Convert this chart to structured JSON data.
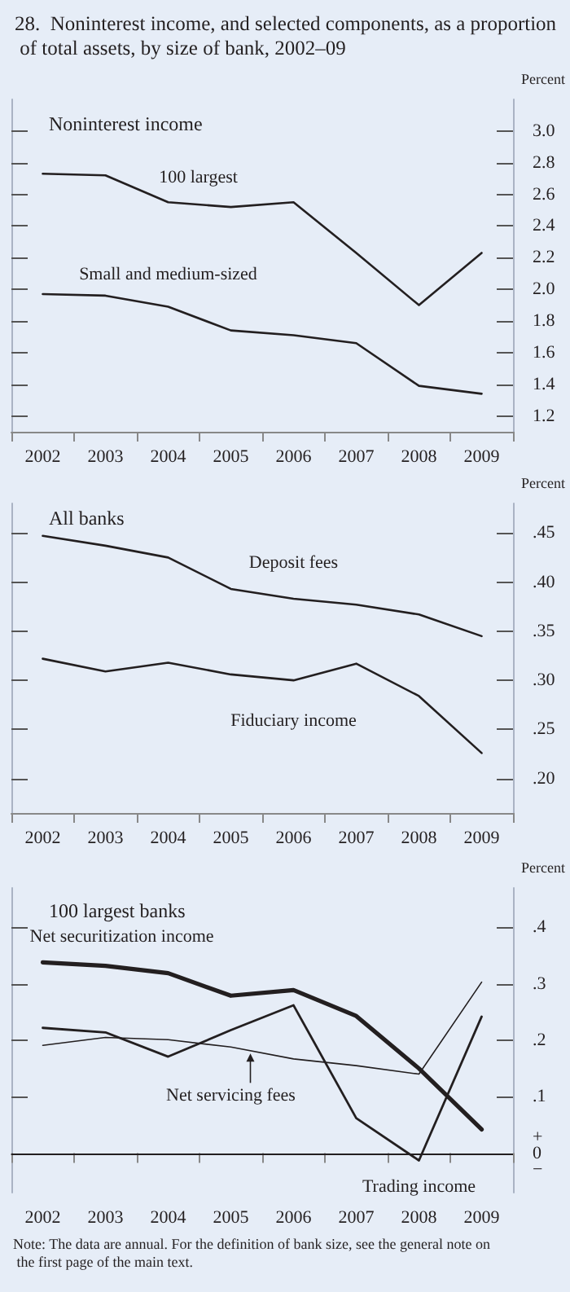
{
  "chart_data": [
    {
      "type": "line",
      "title": "28.  Noninterest income, and selected components, as a proportion of total assets, by size of bank, 2002–09",
      "subtitle": "Noninterest income",
      "ylabel": "Percent",
      "categories": [
        "2002",
        "2003",
        "2004",
        "2005",
        "2006",
        "2007",
        "2008",
        "2009"
      ],
      "series": [
        {
          "name": "100 largest",
          "color": "#231f20",
          "values": [
            2.73,
            2.72,
            2.55,
            2.52,
            2.55,
            2.23,
            1.9,
            2.23
          ]
        },
        {
          "name": "Small and medium-sized",
          "color": "#231f20",
          "values": [
            1.97,
            1.96,
            1.89,
            1.74,
            1.71,
            1.66,
            1.39,
            1.34
          ]
        }
      ],
      "ylim": [
        1.1,
        3.2
      ],
      "yticks": [
        {
          "value": 1.2,
          "label": "1.2"
        },
        {
          "value": 1.4,
          "label": "1.4"
        },
        {
          "value": 1.6,
          "label": "1.6"
        },
        {
          "value": 1.8,
          "label": "1.8"
        },
        {
          "value": 2.0,
          "label": "2.0"
        },
        {
          "value": 2.2,
          "label": "2.2"
        },
        {
          "value": 2.4,
          "label": "2.4"
        },
        {
          "value": 2.6,
          "label": "2.6"
        },
        {
          "value": 2.8,
          "label": "2.8"
        },
        {
          "value": 3.0,
          "label": "3.0"
        }
      ],
      "grid": false,
      "marker": "none"
    },
    {
      "type": "line",
      "title": "All banks",
      "ylabel": "Percent",
      "categories": [
        "2002",
        "2003",
        "2004",
        "2005",
        "2006",
        "2007",
        "2008",
        "2009"
      ],
      "series": [
        {
          "name": "Deposit fees",
          "color": "#231f20",
          "values": [
            0.447,
            0.437,
            0.425,
            0.393,
            0.383,
            0.377,
            0.367,
            0.345
          ]
        },
        {
          "name": "Fiduciary income",
          "color": "#231f20",
          "values": [
            0.322,
            0.309,
            0.318,
            0.306,
            0.3,
            0.317,
            0.284,
            0.226
          ]
        }
      ],
      "ylim": [
        0.165,
        0.48
      ],
      "yticks": [
        {
          "value": 0.2,
          "label": ".20"
        },
        {
          "value": 0.25,
          "label": ".25"
        },
        {
          "value": 0.3,
          "label": ".30"
        },
        {
          "value": 0.35,
          "label": ".35"
        },
        {
          "value": 0.4,
          "label": ".40"
        },
        {
          "value": 0.45,
          "label": ".45"
        }
      ],
      "grid": false,
      "marker": "none"
    },
    {
      "type": "line",
      "title": "100 largest banks",
      "ylabel": "Percent",
      "categories": [
        "2002",
        "2003",
        "2004",
        "2005",
        "2006",
        "2007",
        "2008",
        "2009"
      ],
      "series": [
        {
          "name": "Net securitization income",
          "color": "#231f20",
          "values": [
            0.338,
            0.332,
            0.319,
            0.279,
            0.289,
            0.243,
            0.15,
            0.042
          ]
        },
        {
          "name": "Net servicing fees",
          "color": "#231f20",
          "values": [
            0.191,
            0.205,
            0.201,
            0.188,
            0.167,
            0.155,
            0.14,
            0.303
          ]
        },
        {
          "name": "Trading income",
          "color": "#231f20",
          "values": [
            0.222,
            0.214,
            0.171,
            0.218,
            0.262,
            0.062,
            -0.013,
            0.242
          ]
        }
      ],
      "ylim": [
        -0.07,
        0.47
      ],
      "yticks": [
        {
          "value": 0,
          "label": "+\n0\n−"
        },
        {
          "value": 0.1,
          "label": ".1"
        },
        {
          "value": 0.2,
          "label": ".2"
        },
        {
          "value": 0.3,
          "label": ".3"
        },
        {
          "value": 0.4,
          "label": ".4"
        }
      ],
      "ref_lines": [
        {
          "axis": "y",
          "value": 0,
          "color": "#231f20"
        }
      ],
      "annotations": [
        "Note: The data are annual. For the definition of bank size, see the general note on the first page of the main text."
      ],
      "grid": false,
      "marker": "none"
    }
  ]
}
